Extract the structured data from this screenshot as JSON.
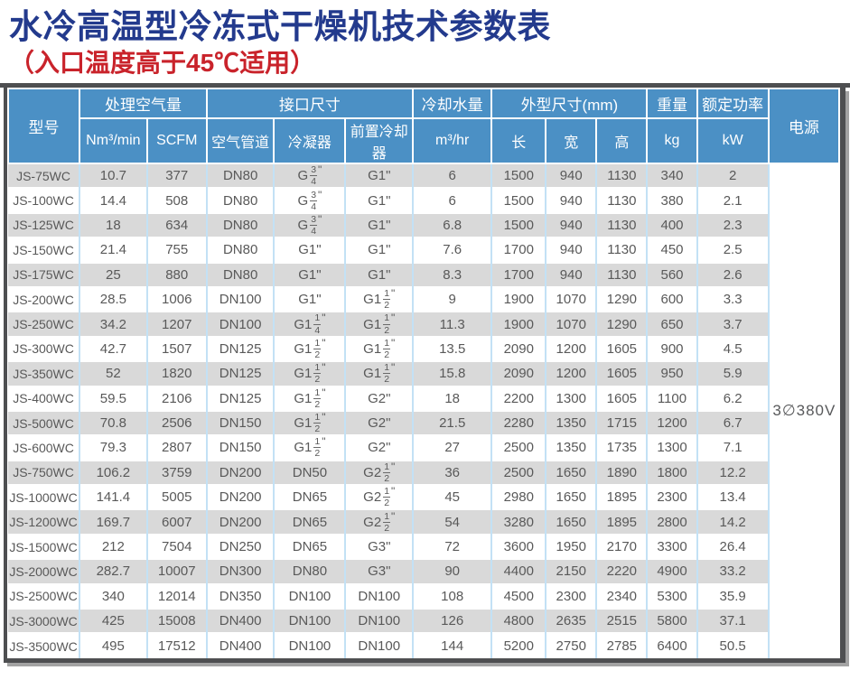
{
  "page": {
    "title": "水冷高温型冷冻式干燥机技术参数表",
    "subtitle": "（入口温度高于45℃适用）"
  },
  "colors": {
    "title-navy": "#233a8d",
    "subtitle-red": "#c9232b",
    "header-blue": "#4b90c5",
    "stripe-gray": "#d9d9d9",
    "grid-blue": "#c3e1f5",
    "cell-text": "#595959",
    "frame-dark": "#4e4f51"
  },
  "table": {
    "header": {
      "model": "型号",
      "air_volume": "处理空气量",
      "air_volume_units": [
        "Nm³/min",
        "SCFM"
      ],
      "connection": "接口尺寸",
      "connection_subs": [
        "空气管道",
        "冷凝器",
        "前置冷却器"
      ],
      "cooling_water": "冷却水量",
      "cooling_water_unit": "m³/hr",
      "dimensions": "外型尺寸(mm)",
      "dimension_subs": [
        "长",
        "宽",
        "高"
      ],
      "weight": "重量",
      "weight_unit": "kg",
      "power": "额定功率",
      "power_unit": "kW",
      "supply": "电源"
    },
    "power_supply": "3∅380V",
    "columns": [
      "model",
      "nm3-min",
      "scfm",
      "air-pipe",
      "condenser",
      "precooler",
      "cooling-water",
      "length",
      "width",
      "height",
      "weight",
      "rated-power"
    ],
    "rows": [
      [
        "JS-75WC",
        "10.7",
        "377",
        "DN80",
        "G3/4\"",
        "G1\"",
        "6",
        "1500",
        "940",
        "1130",
        "340",
        "2"
      ],
      [
        "JS-100WC",
        "14.4",
        "508",
        "DN80",
        "G3/4\"",
        "G1\"",
        "6",
        "1500",
        "940",
        "1130",
        "380",
        "2.1"
      ],
      [
        "JS-125WC",
        "18",
        "634",
        "DN80",
        "G3/4\"",
        "G1\"",
        "6.8",
        "1500",
        "940",
        "1130",
        "400",
        "2.3"
      ],
      [
        "JS-150WC",
        "21.4",
        "755",
        "DN80",
        "G1\"",
        "G1\"",
        "7.6",
        "1700",
        "940",
        "1130",
        "450",
        "2.5"
      ],
      [
        "JS-175WC",
        "25",
        "880",
        "DN80",
        "G1\"",
        "G1\"",
        "8.3",
        "1700",
        "940",
        "1130",
        "560",
        "2.6"
      ],
      [
        "JS-200WC",
        "28.5",
        "1006",
        "DN100",
        "G1\"",
        "G1-1/2\"",
        "9",
        "1900",
        "1070",
        "1290",
        "600",
        "3.3"
      ],
      [
        "JS-250WC",
        "34.2",
        "1207",
        "DN100",
        "G1-1/4\"",
        "G1-1/2\"",
        "11.3",
        "1900",
        "1070",
        "1290",
        "650",
        "3.7"
      ],
      [
        "JS-300WC",
        "42.7",
        "1507",
        "DN125",
        "G1-1/2\"",
        "G1-1/2\"",
        "13.5",
        "2090",
        "1200",
        "1605",
        "900",
        "4.5"
      ],
      [
        "JS-350WC",
        "52",
        "1820",
        "DN125",
        "G1-1/2\"",
        "G1-1/2\"",
        "15.8",
        "2090",
        "1200",
        "1605",
        "950",
        "5.9"
      ],
      [
        "JS-400WC",
        "59.5",
        "2106",
        "DN125",
        "G1-1/2\"",
        "G2\"",
        "18",
        "2200",
        "1300",
        "1605",
        "1100",
        "6.2"
      ],
      [
        "JS-500WC",
        "70.8",
        "2506",
        "DN150",
        "G1-1/2\"",
        "G2\"",
        "21.5",
        "2280",
        "1350",
        "1715",
        "1200",
        "6.7"
      ],
      [
        "JS-600WC",
        "79.3",
        "2807",
        "DN150",
        "G1-1/2\"",
        "G2\"",
        "27",
        "2500",
        "1350",
        "1735",
        "1300",
        "7.1"
      ],
      [
        "JS-750WC",
        "106.2",
        "3759",
        "DN200",
        "DN50",
        "G2-1/2\"",
        "36",
        "2500",
        "1650",
        "1890",
        "1800",
        "12.2"
      ],
      [
        "JS-1000WC",
        "141.4",
        "5005",
        "DN200",
        "DN65",
        "G2-1/2\"",
        "45",
        "2980",
        "1650",
        "1895",
        "2300",
        "13.4"
      ],
      [
        "JS-1200WC",
        "169.7",
        "6007",
        "DN200",
        "DN65",
        "G2-1/2\"",
        "54",
        "3280",
        "1650",
        "1895",
        "2800",
        "14.2"
      ],
      [
        "JS-1500WC",
        "212",
        "7504",
        "DN250",
        "DN65",
        "G3\"",
        "72",
        "3600",
        "1950",
        "2170",
        "3300",
        "26.4"
      ],
      [
        "JS-2000WC",
        "282.7",
        "10007",
        "DN300",
        "DN80",
        "G3\"",
        "90",
        "4400",
        "2150",
        "2220",
        "4900",
        "33.2"
      ],
      [
        "JS-2500WC",
        "340",
        "12014",
        "DN350",
        "DN100",
        "DN100",
        "108",
        "4500",
        "2300",
        "2340",
        "5300",
        "35.9"
      ],
      [
        "JS-3000WC",
        "425",
        "15008",
        "DN400",
        "DN100",
        "DN100",
        "126",
        "4800",
        "2635",
        "2515",
        "5800",
        "37.1"
      ],
      [
        "JS-3500WC",
        "495",
        "17512",
        "DN400",
        "DN100",
        "DN100",
        "144",
        "5200",
        "2750",
        "2785",
        "6400",
        "50.5"
      ]
    ]
  }
}
